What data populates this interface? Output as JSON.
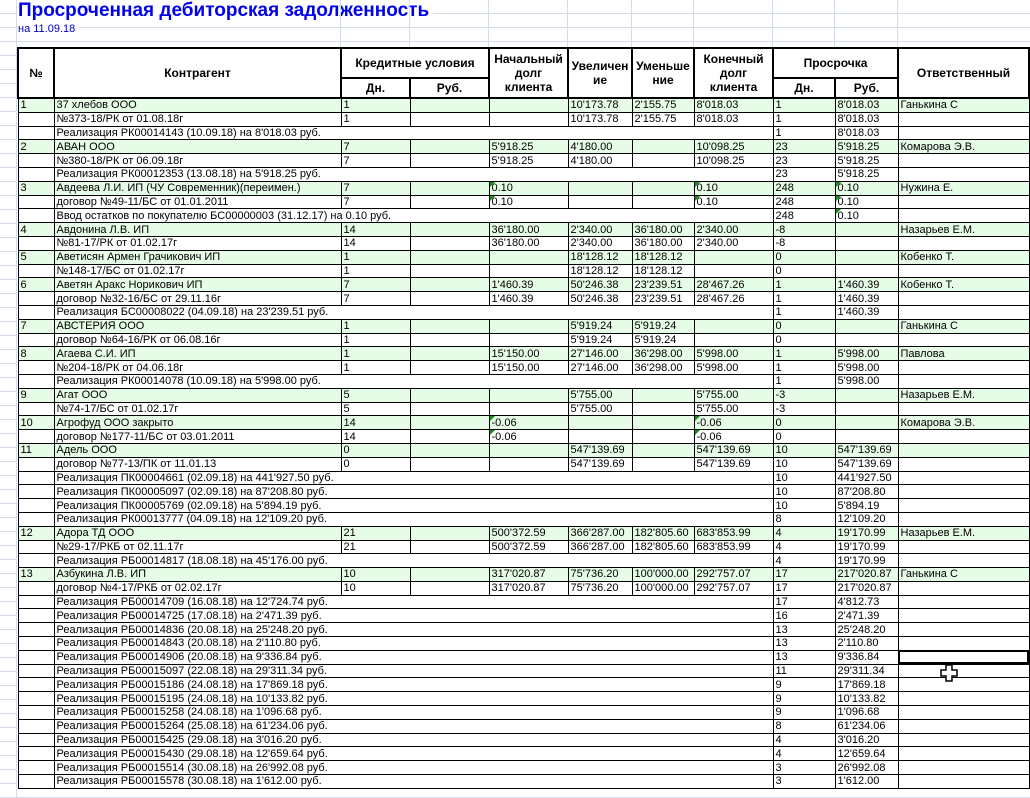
{
  "title": "Просроченная дебиторская задолженность",
  "subtitle": "на  11.09.18",
  "colors": {
    "title": "#0000f0",
    "client_row_bg": "#e6fce6",
    "text_marker": "#1a8a1a"
  },
  "header": {
    "no": "№",
    "counterparty": "Контрагент",
    "credit_terms": "Кредитные условия",
    "credit_days": "Дн.",
    "credit_rub": "Руб.",
    "start_debt": "Начальный долг клиента",
    "increase": "Увеличение",
    "decrease": "Уменьшение",
    "end_debt": "Конечный долг клиента",
    "overdue": "Просрочка",
    "overdue_days": "Дн.",
    "overdue_rub": "Руб.",
    "responsible": "Ответственный"
  },
  "rows": [
    {
      "type": "client",
      "no": "1",
      "name": "37 хлебов ООО",
      "days": "1",
      "rub": "",
      "start": "",
      "inc": "10'173.78",
      "dec": "2'155.75",
      "end": "8'018.03",
      "od": "1",
      "orub": "8'018.03",
      "resp": "Ганькина С"
    },
    {
      "type": "contract",
      "no": "",
      "name": "№373-18/РК от 01.08.18г",
      "days": "1",
      "rub": "",
      "start": "",
      "inc": "10'173.78",
      "dec": "2'155.75",
      "end": "8'018.03",
      "od": "1",
      "orub": "8'018.03",
      "resp": ""
    },
    {
      "type": "sale",
      "name": "Реализация  РК00014143 (10.09.18) на 8'018.03 руб.",
      "od": "1",
      "orub": "8'018.03"
    },
    {
      "type": "client",
      "no": "2",
      "name": "АВАН ООО",
      "days": "7",
      "rub": "",
      "start": "5'918.25",
      "inc": "4'180.00",
      "dec": "",
      "end": "10'098.25",
      "od": "23",
      "orub": "5'918.25",
      "resp": "Комарова Э.В."
    },
    {
      "type": "contract",
      "no": "",
      "name": "№380-18/РК от 06.09.18г",
      "days": "7",
      "rub": "",
      "start": "5'918.25",
      "inc": "4'180.00",
      "dec": "",
      "end": "10'098.25",
      "od": "23",
      "orub": "5'918.25",
      "resp": ""
    },
    {
      "type": "sale",
      "name": "Реализация  РК00012353 (13.08.18) на 5'918.25 руб.",
      "od": "23",
      "orub": "5'918.25"
    },
    {
      "type": "client",
      "no": "3",
      "name": "Авдеева Л.И. ИП (ЧУ Современник)(переимен.)",
      "days": "7",
      "rub": "",
      "start": "0.10",
      "inc": "",
      "dec": "",
      "end": "0.10",
      "od": "248",
      "orub": "0.10",
      "resp": "Нужина Е.",
      "marked": [
        "start",
        "end",
        "orub"
      ]
    },
    {
      "type": "contract",
      "no": "",
      "name": "договор №49-11/БС от 01.01.2011",
      "days": "7",
      "rub": "",
      "start": "0.10",
      "inc": "",
      "dec": "",
      "end": "0.10",
      "od": "248",
      "orub": "0.10",
      "resp": "",
      "marked": [
        "start",
        "end",
        "orub"
      ]
    },
    {
      "type": "sale",
      "name": "Ввод остатков по покупателю БС00000003 (31.12.17) на 0.10 руб.",
      "od": "248",
      "orub": "0.10",
      "marked": [
        "orub"
      ]
    },
    {
      "type": "client",
      "no": "4",
      "name": "Авдонина Л.В. ИП",
      "days": "14",
      "rub": "",
      "start": "36'180.00",
      "inc": "2'340.00",
      "dec": "36'180.00",
      "end": "2'340.00",
      "od": "-8",
      "orub": "",
      "resp": "Назарьев Е.М."
    },
    {
      "type": "contract",
      "no": "",
      "name": "№81-17/РК от 01.02.17г",
      "days": "14",
      "rub": "",
      "start": "36'180.00",
      "inc": "2'340.00",
      "dec": "36'180.00",
      "end": "2'340.00",
      "od": "-8",
      "orub": "",
      "resp": ""
    },
    {
      "type": "client",
      "no": "5",
      "name": "Аветисян Армен Грачикович ИП",
      "days": "1",
      "rub": "",
      "start": "",
      "inc": "18'128.12",
      "dec": "18'128.12",
      "end": "",
      "od": "0",
      "orub": "",
      "resp": "Кобенко Т."
    },
    {
      "type": "contract",
      "no": "",
      "name": "№148-17/БС от 01.02.17г",
      "days": "1",
      "rub": "",
      "start": "",
      "inc": "18'128.12",
      "dec": "18'128.12",
      "end": "",
      "od": "0",
      "orub": "",
      "resp": ""
    },
    {
      "type": "client",
      "no": "6",
      "name": "Аветян Аракс Норикович ИП",
      "days": "7",
      "rub": "",
      "start": "1'460.39",
      "inc": "50'246.38",
      "dec": "23'239.51",
      "end": "28'467.26",
      "od": "1",
      "orub": "1'460.39",
      "resp": "Кобенко Т."
    },
    {
      "type": "contract",
      "no": "",
      "name": "договор №32-16/БС от 29.11.16г",
      "days": "7",
      "rub": "",
      "start": "1'460.39",
      "inc": "50'246.38",
      "dec": "23'239.51",
      "end": "28'467.26",
      "od": "1",
      "orub": "1'460.39",
      "resp": ""
    },
    {
      "type": "sale",
      "name": "Реализация  БС00008022 (04.09.18) на 23'239.51 руб.",
      "od": "1",
      "orub": "1'460.39"
    },
    {
      "type": "client",
      "no": "7",
      "name": "АВСТЕРИЯ ООО",
      "days": "1",
      "rub": "",
      "start": "",
      "inc": "5'919.24",
      "dec": "5'919.24",
      "end": "",
      "od": "0",
      "orub": "",
      "resp": "Ганькина С"
    },
    {
      "type": "contract",
      "no": "",
      "name": "договор №64-16/РК от 06.08.16г",
      "days": "1",
      "rub": "",
      "start": "",
      "inc": "5'919.24",
      "dec": "5'919.24",
      "end": "",
      "od": "0",
      "orub": "",
      "resp": ""
    },
    {
      "type": "client",
      "no": "8",
      "name": "Агаева С.И.  ИП",
      "days": "1",
      "rub": "",
      "start": "15'150.00",
      "inc": "27'146.00",
      "dec": "36'298.00",
      "end": "5'998.00",
      "od": "1",
      "orub": "5'998.00",
      "resp": "Павлова"
    },
    {
      "type": "contract",
      "no": "",
      "name": "№204-18/РК от 04.06.18г",
      "days": "1",
      "rub": "",
      "start": "15'150.00",
      "inc": "27'146.00",
      "dec": "36'298.00",
      "end": "5'998.00",
      "od": "1",
      "orub": "5'998.00",
      "resp": ""
    },
    {
      "type": "sale",
      "name": "Реализация  РК00014078 (10.09.18) на 5'998.00 руб.",
      "od": "1",
      "orub": "5'998.00"
    },
    {
      "type": "client",
      "no": "9",
      "name": "Агат ООО",
      "days": "5",
      "rub": "",
      "start": "",
      "inc": "5'755.00",
      "dec": "",
      "end": "5'755.00",
      "od": "-3",
      "orub": "",
      "resp": "Назарьев Е.М."
    },
    {
      "type": "contract",
      "no": "",
      "name": "№74-17/БС от 01.02.17г",
      "days": "5",
      "rub": "",
      "start": "",
      "inc": "5'755.00",
      "dec": "",
      "end": "5'755.00",
      "od": "-3",
      "orub": "",
      "resp": ""
    },
    {
      "type": "client",
      "no": "10",
      "name": "Агрофуд ООО закрыто",
      "days": "14",
      "rub": "",
      "start": "-0.06",
      "inc": "",
      "dec": "",
      "end": "-0.06",
      "od": "0",
      "orub": "",
      "resp": "Комарова Э.В.",
      "marked": [
        "start",
        "end"
      ]
    },
    {
      "type": "contract",
      "no": "",
      "name": "договор №177-11/БС от 03.01.2011",
      "days": "14",
      "rub": "",
      "start": "-0.06",
      "inc": "",
      "dec": "",
      "end": "-0.06",
      "od": "0",
      "orub": "",
      "resp": "",
      "marked": [
        "start",
        "end"
      ]
    },
    {
      "type": "client",
      "no": "11",
      "name": "Адель ООО",
      "days": "0",
      "rub": "",
      "start": "",
      "inc": "547'139.69",
      "dec": "",
      "end": "547'139.69",
      "od": "10",
      "orub": "547'139.69",
      "resp": ""
    },
    {
      "type": "contract",
      "no": "",
      "name": "договор №77-13/ПК от 11.01.13",
      "days": "0",
      "rub": "",
      "start": "",
      "inc": "547'139.69",
      "dec": "",
      "end": "547'139.69",
      "od": "10",
      "orub": "547'139.69",
      "resp": ""
    },
    {
      "type": "sale",
      "name": "Реализация  ПК00004661 (02.09.18) на 441'927.50 руб.",
      "od": "10",
      "orub": "441'927.50"
    },
    {
      "type": "sale",
      "name": "Реализация  ПК00005097 (02.09.18) на 87'208.80 руб.",
      "od": "10",
      "orub": "87'208.80"
    },
    {
      "type": "sale",
      "name": "Реализация  ПК00005769 (02.09.18) на 5'894.19 руб.",
      "od": "10",
      "orub": "5'894.19"
    },
    {
      "type": "sale",
      "name": "Реализация  РК00013777 (04.09.18) на 12'109.20 руб.",
      "od": "8",
      "orub": "12'109.20"
    },
    {
      "type": "client",
      "no": "12",
      "name": "Адора ТД ООО",
      "days": "21",
      "rub": "",
      "start": "500'372.59",
      "inc": "366'287.00",
      "dec": "182'805.60",
      "end": "683'853.99",
      "od": "4",
      "orub": "19'170.99",
      "resp": "Назарьев Е.М."
    },
    {
      "type": "contract",
      "no": "",
      "name": "№29-17/РКБ от 02.11.17г",
      "days": "21",
      "rub": "",
      "start": "500'372.59",
      "inc": "366'287.00",
      "dec": "182'805.60",
      "end": "683'853.99",
      "od": "4",
      "orub": "19'170.99",
      "resp": ""
    },
    {
      "type": "sale",
      "name": "Реализация  РБ00014817 (18.08.18) на 45'176.00 руб.",
      "od": "4",
      "orub": "19'170.99"
    },
    {
      "type": "client",
      "no": "13",
      "name": "Азбукина Л.В. ИП",
      "days": "10",
      "rub": "",
      "start": "317'020.87",
      "inc": "75'736.20",
      "dec": "100'000.00",
      "end": "292'757.07",
      "od": "17",
      "orub": "217'020.87",
      "resp": "Ганькина С"
    },
    {
      "type": "contract",
      "no": "",
      "name": "договор №4-17/РКБ от 02.02.17г",
      "days": "10",
      "rub": "",
      "start": "317'020.87",
      "inc": "75'736.20",
      "dec": "100'000.00",
      "end": "292'757.07",
      "od": "17",
      "orub": "217'020.87",
      "resp": ""
    },
    {
      "type": "sale",
      "name": "Реализация  РБ00014709 (16.08.18) на 12'724.74 руб.",
      "od": "17",
      "orub": "4'812.73"
    },
    {
      "type": "sale",
      "name": "Реализация  РБ00014725 (17.08.18) на 2'471.39 руб.",
      "od": "16",
      "orub": "2'471.39"
    },
    {
      "type": "sale",
      "name": "Реализация  РБ00014836 (20.08.18) на 25'248.20 руб.",
      "od": "13",
      "orub": "25'248.20"
    },
    {
      "type": "sale",
      "name": "Реализация  РБ00014843 (20.08.18) на 2'110.80 руб.",
      "od": "13",
      "orub": "2'110.80"
    },
    {
      "type": "sale",
      "name": "Реализация  РБ00014906 (20.08.18) на 9'336.84 руб.",
      "od": "13",
      "orub": "9'336.84",
      "selected": true
    },
    {
      "type": "sale",
      "name": "Реализация  РБ00015097 (22.08.18) на 29'311.34 руб.",
      "od": "11",
      "orub": "29'311.34"
    },
    {
      "type": "sale",
      "name": "Реализация  РБ00015186 (24.08.18) на 17'869.18 руб.",
      "od": "9",
      "orub": "17'869.18"
    },
    {
      "type": "sale",
      "name": "Реализация  РБ00015195 (24.08.18) на 10'133.82 руб.",
      "od": "9",
      "orub": "10'133.82"
    },
    {
      "type": "sale",
      "name": "Реализация  РБ00015258 (24.08.18) на 1'096.68 руб.",
      "od": "9",
      "orub": "1'096.68"
    },
    {
      "type": "sale",
      "name": "Реализация  РБ00015264 (25.08.18) на 61'234.06 руб.",
      "od": "8",
      "orub": "61'234.06"
    },
    {
      "type": "sale",
      "name": "Реализация  РБ00015425 (29.08.18) на 3'016.20 руб.",
      "od": "4",
      "orub": "3'016.20"
    },
    {
      "type": "sale",
      "name": "Реализация  РБ00015430 (29.08.18) на 12'659.64 руб.",
      "od": "4",
      "orub": "12'659.64"
    },
    {
      "type": "sale",
      "name": "Реализация  РБ00015514 (30.08.18) на 26'992.08 руб.",
      "od": "3",
      "orub": "26'992.08"
    },
    {
      "type": "sale",
      "name": "Реализация  РБ00015578 (30.08.18) на 1'612.00 руб.",
      "od": "3",
      "orub": "1'612.00"
    }
  ]
}
